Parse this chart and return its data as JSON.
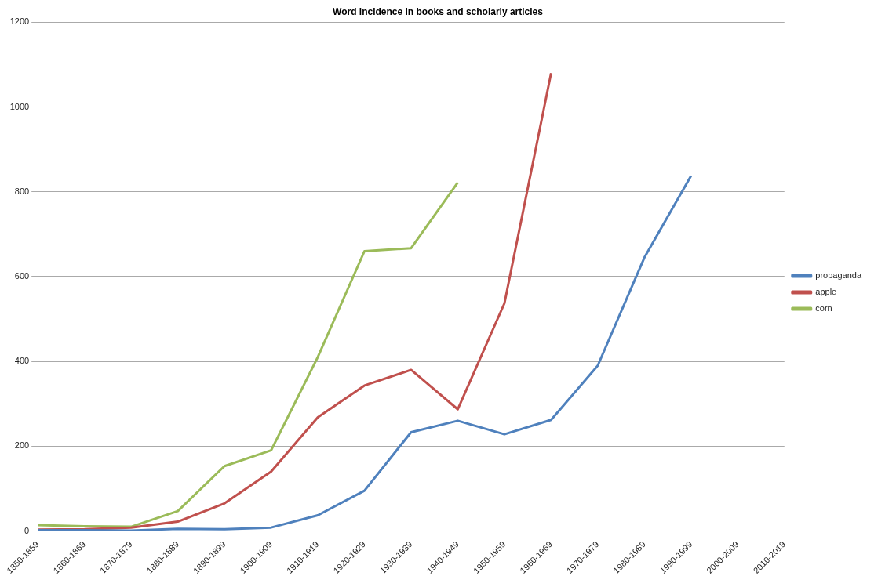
{
  "chart_data": {
    "type": "line",
    "title": "Word incidence in books and scholarly articles",
    "categories": [
      "1850-1859",
      "1860-1869",
      "1870-1879",
      "1880-1889",
      "1890-1899",
      "1900-1909",
      "1910-1919",
      "1920-1929",
      "1930-1939",
      "1940-1949",
      "1950-1959",
      "1960-1969",
      "1970-1979",
      "1980-1989",
      "1990-1999",
      "2000-2009",
      "2010-2019"
    ],
    "series": [
      {
        "name": "propaganda",
        "color": "#4f81bd",
        "values": [
          2,
          2,
          1,
          5,
          4,
          8,
          37,
          95,
          233,
          260,
          228,
          262,
          390,
          645,
          838,
          null,
          null
        ]
      },
      {
        "name": "apple",
        "color": "#c0504d",
        "values": [
          3,
          4,
          8,
          22,
          65,
          140,
          268,
          343,
          380,
          287,
          537,
          1080,
          null,
          null,
          null,
          null,
          null
        ]
      },
      {
        "name": "corn",
        "color": "#9bbb59",
        "values": [
          14,
          11,
          10,
          47,
          153,
          190,
          410,
          660,
          667,
          822,
          null,
          null,
          null,
          null,
          null,
          null,
          null
        ]
      }
    ],
    "ylim": [
      0,
      1200
    ],
    "yticks": [
      0,
      200,
      400,
      600,
      800,
      1000,
      1200
    ],
    "grid": "y",
    "legend": "right",
    "marker": "none",
    "line_style": "solid"
  }
}
